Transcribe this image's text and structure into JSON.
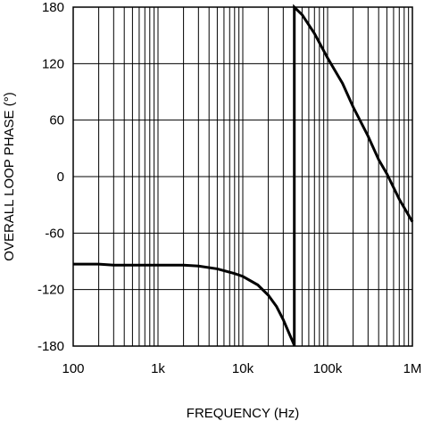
{
  "chart_data": {
    "type": "line",
    "title": "",
    "xlabel": "FREQUENCY (Hz)",
    "ylabel": "OVERALL LOOP PHASE (°)",
    "x_scale": "log",
    "xlim": [
      100,
      1000000
    ],
    "ylim": [
      -180,
      180
    ],
    "grid": true,
    "x_ticks": [
      100,
      1000,
      10000,
      100000,
      1000000
    ],
    "x_tick_labels": [
      "100",
      "1k",
      "10k",
      "100k",
      "1M"
    ],
    "y_ticks": [
      180,
      120,
      60,
      0,
      -60,
      -120,
      -180
    ],
    "y_tick_labels": [
      "180",
      "120",
      "60",
      "0",
      "-60",
      "-120",
      "-180"
    ],
    "series": [
      {
        "color": "#000000",
        "points": [
          [
            100,
            -93
          ],
          [
            200,
            -93
          ],
          [
            300,
            -94
          ],
          [
            1000,
            -94
          ],
          [
            2000,
            -94
          ],
          [
            3000,
            -95
          ],
          [
            5000,
            -98
          ],
          [
            8000,
            -103
          ],
          [
            10000,
            -106
          ],
          [
            15000,
            -115
          ],
          [
            20000,
            -126
          ],
          [
            25000,
            -138
          ],
          [
            30000,
            -152
          ],
          [
            35000,
            -166
          ],
          [
            40000,
            -178
          ],
          [
            40500,
            -180
          ],
          [
            40500,
            180
          ],
          [
            50000,
            172
          ],
          [
            70000,
            152
          ],
          [
            100000,
            126
          ],
          [
            150000,
            99
          ],
          [
            200000,
            74
          ],
          [
            300000,
            43
          ],
          [
            400000,
            18
          ],
          [
            500000,
            3
          ],
          [
            700000,
            -24
          ],
          [
            1000000,
            -48
          ]
        ]
      }
    ]
  }
}
